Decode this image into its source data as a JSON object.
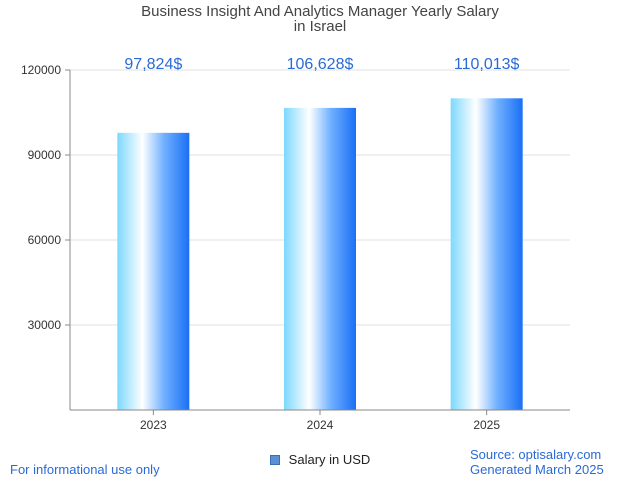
{
  "chart_data": {
    "type": "bar",
    "title_lines": [
      "Business Insight And Analytics Manager Yearly Salary",
      "in Israel"
    ],
    "categories": [
      "2023",
      "2024",
      "2025"
    ],
    "series": [
      {
        "name": "Salary in USD",
        "values": [
          97824,
          106628,
          110013
        ],
        "data_labels": [
          "97,824$",
          "106,628$",
          "110,013$"
        ]
      }
    ],
    "ylim": [
      0,
      120000
    ],
    "yticks": [
      30000,
      60000,
      90000,
      120000
    ],
    "ytick_labels": [
      "30000",
      "60000",
      "90000",
      "120000"
    ],
    "grid": true,
    "legend_position": "bottom-center",
    "colors": {
      "bar_dark": "#1a6ff5",
      "bar_light": "#ffffff",
      "bar_cyan": "#7dd8ff",
      "data_label": "#2a6ad6",
      "grid": "#e0e0e0",
      "axis": "#888888"
    }
  },
  "footer": {
    "left": "For informational use only",
    "source": "Source: optisalary.com",
    "generated": "Generated March 2025"
  }
}
